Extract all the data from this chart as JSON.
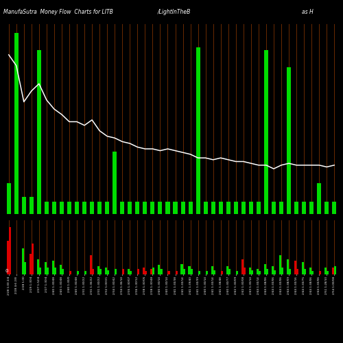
{
  "title_left": "ManufaSutra  Money Flow  Charts for LITB",
  "title_mid": "/LightInTheB",
  "title_right": "as H",
  "bg_color": "#000000",
  "green": "#00dd00",
  "red": "#dd0000",
  "line_color": "#ffffff",
  "vline_color": "#7B3000",
  "n_bars": 44,
  "upper_bars": [
    55,
    320,
    30,
    30,
    290,
    22,
    22,
    22,
    22,
    22,
    22,
    22,
    22,
    22,
    110,
    22,
    22,
    22,
    22,
    22,
    22,
    22,
    22,
    22,
    22,
    295,
    22,
    22,
    22,
    22,
    22,
    22,
    22,
    22,
    290,
    22,
    22,
    260,
    22,
    22,
    22,
    55,
    22,
    22
  ],
  "upper_colors": [
    "g",
    "g",
    "g",
    "g",
    "g",
    "g",
    "g",
    "g",
    "g",
    "g",
    "g",
    "g",
    "g",
    "g",
    "g",
    "g",
    "g",
    "g",
    "g",
    "g",
    "g",
    "g",
    "g",
    "g",
    "g",
    "g",
    "g",
    "g",
    "g",
    "g",
    "g",
    "g",
    "g",
    "g",
    "g",
    "g",
    "g",
    "g",
    "g",
    "g",
    "g",
    "g",
    "g",
    "g"
  ],
  "lower_bars": [
    [
      50,
      "r"
    ],
    [
      0,
      "g"
    ],
    [
      38,
      "g"
    ],
    [
      30,
      "r"
    ],
    [
      22,
      "g"
    ],
    [
      18,
      "g"
    ],
    [
      20,
      "g"
    ],
    [
      14,
      "g"
    ],
    [
      0,
      "r"
    ],
    [
      0,
      "g"
    ],
    [
      0,
      "g"
    ],
    [
      28,
      "r"
    ],
    [
      12,
      "g"
    ],
    [
      10,
      "g"
    ],
    [
      0,
      "g"
    ],
    [
      0,
      "r"
    ],
    [
      8,
      "g"
    ],
    [
      0,
      "g"
    ],
    [
      10,
      "r"
    ],
    [
      8,
      "r"
    ],
    [
      14,
      "g"
    ],
    [
      0,
      "r"
    ],
    [
      0,
      "r"
    ],
    [
      15,
      "g"
    ],
    [
      12,
      "g"
    ],
    [
      0,
      "g"
    ],
    [
      0,
      "g"
    ],
    [
      12,
      "g"
    ],
    [
      0,
      "r"
    ],
    [
      12,
      "g"
    ],
    [
      0,
      "g"
    ],
    [
      22,
      "r"
    ],
    [
      10,
      "g"
    ],
    [
      8,
      "g"
    ],
    [
      15,
      "g"
    ],
    [
      12,
      "g"
    ],
    [
      28,
      "g"
    ],
    [
      22,
      "g"
    ],
    [
      20,
      "r"
    ],
    [
      18,
      "g"
    ],
    [
      10,
      "g"
    ],
    [
      0,
      "r"
    ],
    [
      10,
      "g"
    ],
    [
      10,
      "r"
    ]
  ],
  "lower_bars2": [
    [
      70,
      "r"
    ],
    [
      0,
      "g"
    ],
    [
      18,
      "g"
    ],
    [
      45,
      "r"
    ],
    [
      10,
      "g"
    ],
    [
      10,
      "g"
    ],
    [
      10,
      "g"
    ],
    [
      8,
      "g"
    ],
    [
      5,
      "r"
    ],
    [
      5,
      "g"
    ],
    [
      5,
      "g"
    ],
    [
      8,
      "r"
    ],
    [
      8,
      "g"
    ],
    [
      6,
      "g"
    ],
    [
      8,
      "g"
    ],
    [
      8,
      "r"
    ],
    [
      5,
      "g"
    ],
    [
      8,
      "r"
    ],
    [
      5,
      "r"
    ],
    [
      10,
      "g"
    ],
    [
      8,
      "g"
    ],
    [
      5,
      "r"
    ],
    [
      5,
      "r"
    ],
    [
      8,
      "g"
    ],
    [
      8,
      "g"
    ],
    [
      5,
      "g"
    ],
    [
      5,
      "g"
    ],
    [
      6,
      "g"
    ],
    [
      5,
      "r"
    ],
    [
      8,
      "g"
    ],
    [
      5,
      "g"
    ],
    [
      10,
      "r"
    ],
    [
      6,
      "g"
    ],
    [
      5,
      "g"
    ],
    [
      8,
      "g"
    ],
    [
      6,
      "g"
    ],
    [
      10,
      "g"
    ],
    [
      8,
      "g"
    ],
    [
      8,
      "r"
    ],
    [
      8,
      "g"
    ],
    [
      5,
      "g"
    ],
    [
      5,
      "r"
    ],
    [
      5,
      "g"
    ],
    [
      12,
      "g"
    ]
  ],
  "line_y": [
    88,
    82,
    62,
    68,
    72,
    63,
    58,
    55,
    51,
    51,
    49,
    52,
    46,
    43,
    42,
    40,
    39,
    37,
    36,
    36,
    35,
    36,
    35,
    34,
    33,
    31,
    31,
    30,
    31,
    30,
    29,
    29,
    28,
    27,
    27,
    25,
    27,
    28,
    27,
    27,
    27,
    27,
    26,
    27
  ],
  "xlabels": [
    "2/28 1:00 2/4",
    "2/28 4:6 2/8",
    "2/28 1:00",
    "2/29 1:30/4",
    "2/27 1:52/4",
    "2/27 1:30/4",
    "2/40 1:30/48",
    "2/40 1:30/48",
    "2/40 1:30/0",
    "2/40 1:30/48",
    "2/31 1:30/22",
    "2/31 1:36/22",
    "2/31 1:30/22",
    "2/32 1:00/21",
    "2/34 1:30/42",
    "2/34 1:36/14",
    "2/35 1:30/07",
    "2/36 1:30/12",
    "2/38 1:30/05",
    "2/38 1:30/48",
    "2/40 1:30/14",
    "2/40 1:30/14",
    "2/41 1:30/38",
    "2/41 1:30/14",
    "2/41 1:39/40",
    "2/41 1:30/39",
    "2/40 1:30/14",
    "2/41 1:30/14",
    "2/41 1:38/48",
    "2/40 1:30/77",
    "2/42 1:30/09",
    "2/42 1:30/08",
    "2/43 1:30/14",
    "2/44 1:30/14",
    "2/44 1:38/06",
    "2/44 1:30/06",
    "2/44 1:30/06",
    "2/44 1:38/09",
    "2/44 1:30/16",
    "2/44 1:30/75",
    "2/44 1:38/06",
    "2/44 1:30/06",
    "2/51 1:28/10",
    "2/54 1:00/08"
  ]
}
